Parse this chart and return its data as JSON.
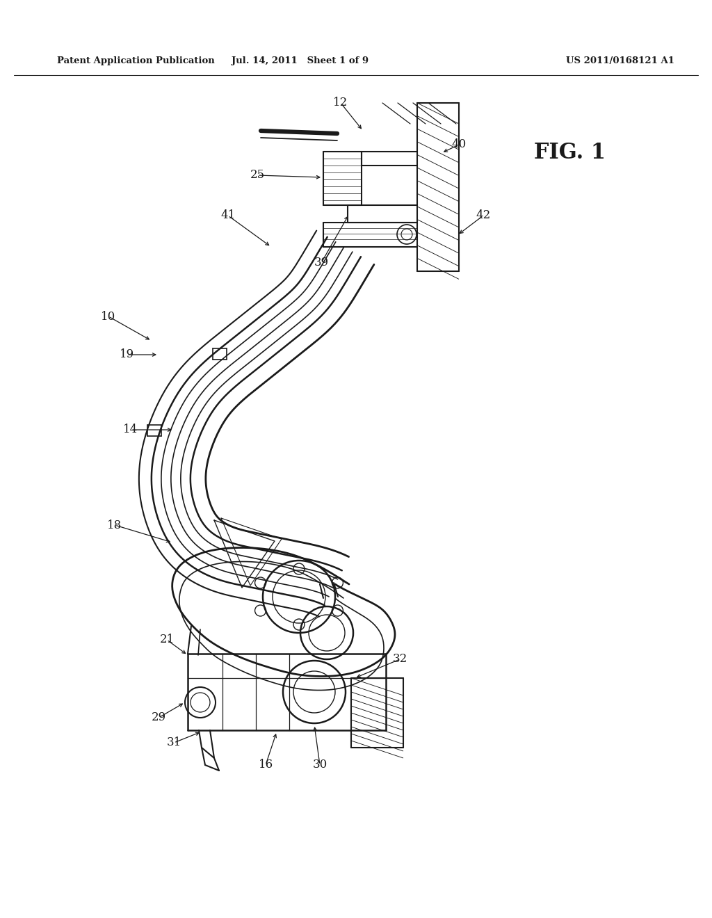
{
  "background_color": "#ffffff",
  "header_left": "Patent Application Publication",
  "header_mid": "Jul. 14, 2011   Sheet 1 of 9",
  "header_right": "US 2011/0168121 A1",
  "fig_label": "FIG. 1",
  "line_color": "#1a1a1a",
  "page_width": 10.24,
  "page_height": 13.2,
  "dpi": 100,
  "labels": [
    [
      "12",
      490,
      158
    ],
    [
      "40",
      660,
      208
    ],
    [
      "42",
      688,
      310
    ],
    [
      "25",
      390,
      258
    ],
    [
      "41",
      340,
      310
    ],
    [
      "39",
      478,
      368
    ],
    [
      "10",
      162,
      458
    ],
    [
      "19",
      188,
      510
    ],
    [
      "14",
      195,
      618
    ],
    [
      "18",
      175,
      755
    ],
    [
      "21",
      248,
      918
    ],
    [
      "29",
      240,
      1032
    ],
    [
      "31",
      262,
      1065
    ],
    [
      "16",
      390,
      1098
    ],
    [
      "30",
      468,
      1098
    ],
    [
      "32",
      575,
      948
    ]
  ]
}
